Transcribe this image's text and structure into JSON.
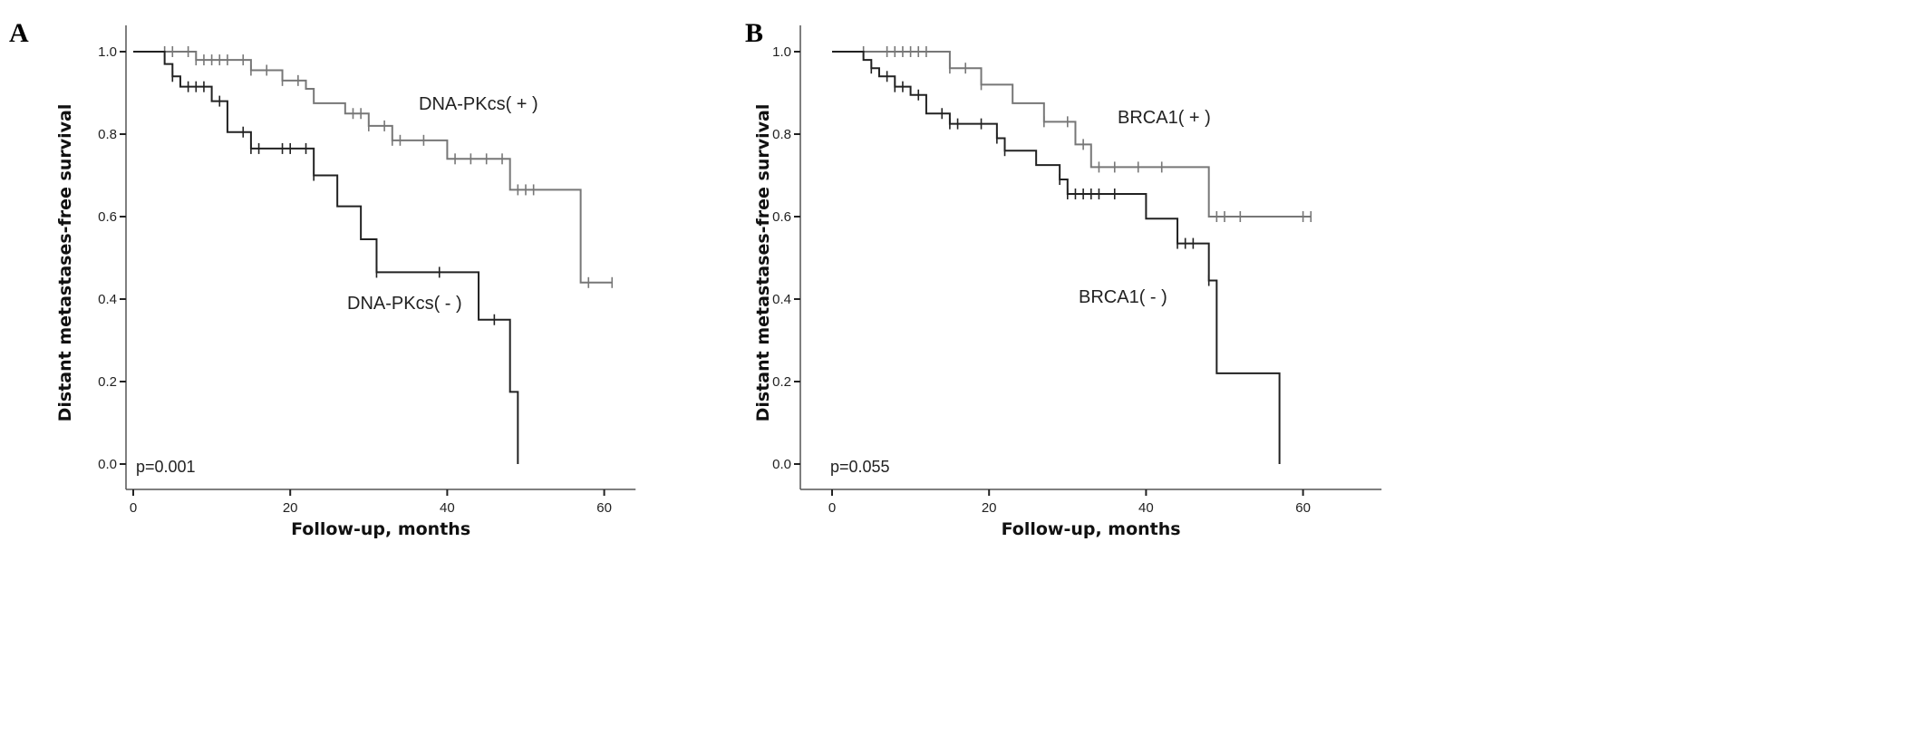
{
  "chart_data": [
    {
      "type": "line",
      "subtype": "kaplan-meier",
      "panel": "A",
      "xlabel": "Follow-up, months",
      "ylabel": "Distant metastases-free survival",
      "xticks": [
        0,
        20,
        40,
        60
      ],
      "yticks": [
        "0.0",
        "0.2",
        "0.4",
        "0.6",
        "0.8",
        "1.0"
      ],
      "xlim": [
        -1,
        64
      ],
      "ylim": [
        0,
        1.05
      ],
      "annotation": "p=0.001",
      "series": [
        {
          "name": "DNA-PKcs( + )",
          "color": "#777777",
          "steps": [
            [
              0,
              1.0
            ],
            [
              8,
              0.98
            ],
            [
              15,
              0.955
            ],
            [
              19,
              0.93
            ],
            [
              22,
              0.91
            ],
            [
              23,
              0.875
            ],
            [
              27,
              0.85
            ],
            [
              30,
              0.82
            ],
            [
              33,
              0.785
            ],
            [
              40,
              0.74
            ],
            [
              48,
              0.665
            ],
            [
              57,
              0.44
            ]
          ],
          "end": 61,
          "censored": [
            4,
            5,
            7,
            8,
            9,
            10,
            11,
            12,
            14,
            15,
            17,
            19,
            21,
            28,
            29,
            30,
            32,
            33,
            34,
            37,
            41,
            43,
            45,
            47,
            49,
            50,
            51,
            58,
            61
          ]
        },
        {
          "name": "DNA-PKcs( - )",
          "color": "#222222",
          "steps": [
            [
              0,
              1.0
            ],
            [
              4,
              0.97
            ],
            [
              5,
              0.94
            ],
            [
              6,
              0.915
            ],
            [
              10,
              0.88
            ],
            [
              12,
              0.805
            ],
            [
              15,
              0.765
            ],
            [
              23,
              0.7
            ],
            [
              26,
              0.625
            ],
            [
              29,
              0.545
            ],
            [
              31,
              0.465
            ],
            [
              44,
              0.35
            ],
            [
              48,
              0.175
            ],
            [
              49,
              0.0
            ]
          ],
          "end": 49,
          "censored": [
            5,
            7,
            8,
            9,
            11,
            14,
            15,
            16,
            19,
            20,
            22,
            23,
            31,
            39,
            46
          ]
        }
      ]
    },
    {
      "type": "line",
      "subtype": "kaplan-meier",
      "panel": "B",
      "xlabel": "Follow-up, months",
      "ylabel": "Distant metastases-free survival",
      "xticks": [
        0,
        20,
        40,
        60
      ],
      "yticks": [
        "0.0",
        "0.2",
        "0.4",
        "0.6",
        "0.8",
        "1.0"
      ],
      "xlim": [
        -4,
        70
      ],
      "ylim": [
        0,
        1.05
      ],
      "annotation": "p=0.055",
      "series": [
        {
          "name": "BRCA1( + )",
          "color": "#777777",
          "steps": [
            [
              0,
              1.0
            ],
            [
              15,
              0.96
            ],
            [
              19,
              0.92
            ],
            [
              23,
              0.875
            ],
            [
              27,
              0.83
            ],
            [
              31,
              0.775
            ],
            [
              33,
              0.72
            ],
            [
              48,
              0.6
            ]
          ],
          "end": 61,
          "censored": [
            4,
            7,
            8,
            9,
            10,
            11,
            12,
            15,
            17,
            19,
            27,
            30,
            32,
            34,
            36,
            39,
            42,
            49,
            50,
            52,
            60,
            61
          ]
        },
        {
          "name": "BRCA1( - )",
          "color": "#222222",
          "steps": [
            [
              0,
              1.0
            ],
            [
              4,
              0.98
            ],
            [
              5,
              0.96
            ],
            [
              6,
              0.94
            ],
            [
              8,
              0.915
            ],
            [
              10,
              0.895
            ],
            [
              12,
              0.85
            ],
            [
              15,
              0.825
            ],
            [
              21,
              0.79
            ],
            [
              22,
              0.76
            ],
            [
              26,
              0.725
            ],
            [
              29,
              0.69
            ],
            [
              30,
              0.655
            ],
            [
              40,
              0.595
            ],
            [
              44,
              0.535
            ],
            [
              48,
              0.445
            ],
            [
              49,
              0.22
            ],
            [
              57,
              0.0
            ]
          ],
          "end": 57,
          "censored": [
            5,
            7,
            8,
            9,
            11,
            14,
            15,
            16,
            19,
            21,
            22,
            29,
            30,
            31,
            32,
            33,
            34,
            36,
            44,
            45,
            46,
            48
          ]
        }
      ]
    }
  ]
}
